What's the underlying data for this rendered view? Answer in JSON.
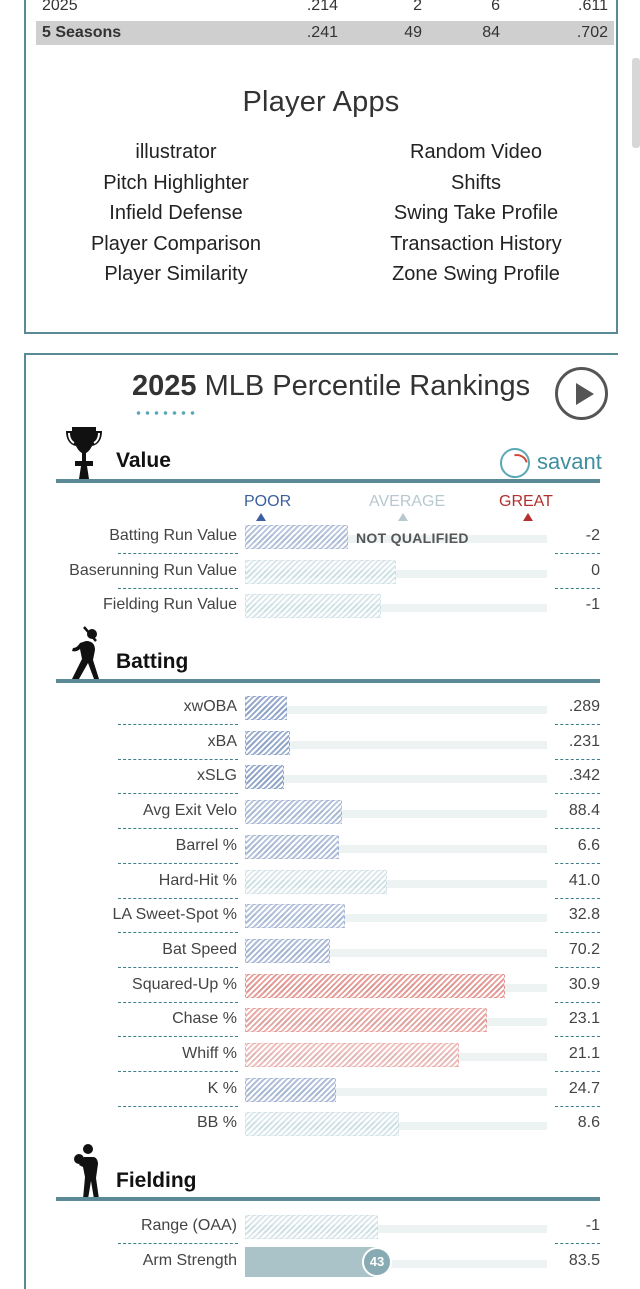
{
  "career_table": {
    "rows": [
      {
        "label": "2025",
        "avg": ".214",
        "hr": "2",
        "rbi": "6",
        "ops": ".611",
        "total": false
      },
      {
        "label": "5 Seasons",
        "avg": ".241",
        "hr": "49",
        "rbi": "84",
        "ops": ".702",
        "total": true
      }
    ]
  },
  "player_apps": {
    "title": "Player Apps",
    "left": [
      "illustrator",
      "Pitch Highlighter",
      "Infield Defense",
      "Player Comparison",
      "Player Similarity"
    ],
    "right": [
      "Random Video",
      "Shifts",
      "Swing Take Profile",
      "Transaction History",
      "Zone Swing Profile"
    ]
  },
  "percentile": {
    "title_year": "2025",
    "title_rest": " MLB Percentile Rankings",
    "savant_label": "savant",
    "legend": {
      "poor": "POOR",
      "average": "AVERAGE",
      "great": "GREAT"
    },
    "not_qualified": "NOT QUALIFIED",
    "colors": {
      "poor": "#4a6aa8",
      "great": "#d0473f",
      "accent": "#5a8a96"
    },
    "sections": [
      {
        "title": "Value",
        "icon": "trophy-icon",
        "metrics": [
          {
            "label": "Batting Run Value",
            "value": "-2",
            "percentile": 34
          },
          {
            "label": "Baserunning Run Value",
            "value": "0",
            "percentile": 50
          },
          {
            "label": "Fielding Run Value",
            "value": "-1",
            "percentile": 45
          }
        ]
      },
      {
        "title": "Batting",
        "icon": "batter-icon",
        "metrics": [
          {
            "label": "xwOBA",
            "value": ".289",
            "percentile": 14
          },
          {
            "label": "xBA",
            "value": ".231",
            "percentile": 15
          },
          {
            "label": "xSLG",
            "value": ".342",
            "percentile": 13
          },
          {
            "label": "Avg Exit Velo",
            "value": "88.4",
            "percentile": 32
          },
          {
            "label": "Barrel %",
            "value": "6.6",
            "percentile": 31
          },
          {
            "label": "Hard-Hit %",
            "value": "41.0",
            "percentile": 47
          },
          {
            "label": "LA Sweet-Spot %",
            "value": "32.8",
            "percentile": 33
          },
          {
            "label": "Bat Speed",
            "value": "70.2",
            "percentile": 28
          },
          {
            "label": "Squared-Up %",
            "value": "30.9",
            "percentile": 86
          },
          {
            "label": "Chase %",
            "value": "23.1",
            "percentile": 80
          },
          {
            "label": "Whiff %",
            "value": "21.1",
            "percentile": 71
          },
          {
            "label": "K %",
            "value": "24.7",
            "percentile": 30
          },
          {
            "label": "BB %",
            "value": "8.6",
            "percentile": 51
          }
        ]
      },
      {
        "title": "Fielding",
        "icon": "fielder-icon",
        "metrics": [
          {
            "label": "Range (OAA)",
            "value": "-1",
            "percentile": 44
          },
          {
            "label": "Arm Strength",
            "value": "83.5",
            "percentile": 43,
            "badge": "43"
          }
        ]
      }
    ]
  }
}
